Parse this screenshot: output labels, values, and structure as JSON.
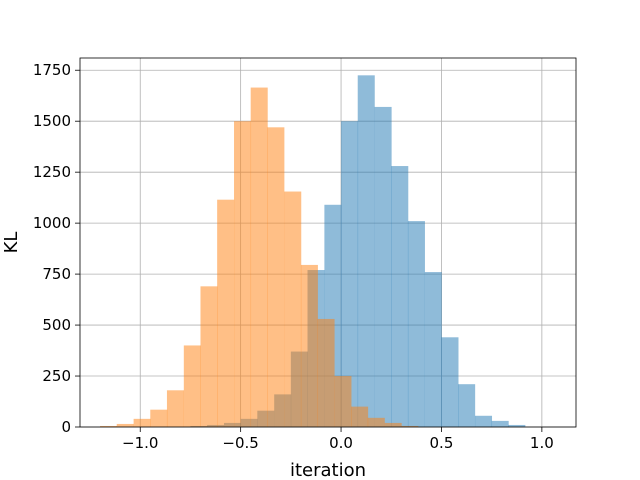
{
  "chart_data": {
    "type": "bar",
    "title": "",
    "xlabel": "iteration",
    "ylabel": "KL",
    "xlim": [
      -1.3,
      1.17
    ],
    "ylim": [
      0,
      1810
    ],
    "grid": true,
    "legend": "none",
    "xticks": [
      -1.0,
      -0.5,
      0.0,
      0.5,
      1.0
    ],
    "xtick_labels": [
      "−1.0",
      "−0.5",
      "0.0",
      "0.5",
      "1.0"
    ],
    "yticks": [
      0,
      250,
      500,
      750,
      1000,
      1250,
      1500,
      1750
    ],
    "ytick_labels": [
      "0",
      "250",
      "500",
      "750",
      "1000",
      "1250",
      "1500",
      "1750"
    ],
    "bin_width": 0.0833,
    "series": [
      {
        "color": "#1f77b4",
        "opacity": 0.5,
        "bin_starts": [
          -0.75,
          -0.667,
          -0.583,
          -0.5,
          -0.417,
          -0.333,
          -0.25,
          -0.167,
          -0.083,
          0.0,
          0.083,
          0.167,
          0.25,
          0.333,
          0.417,
          0.5,
          0.583,
          0.667,
          0.75,
          0.833
        ],
        "values": [
          5,
          10,
          20,
          40,
          80,
          160,
          370,
          770,
          1090,
          1500,
          1725,
          1570,
          1280,
          1010,
          760,
          440,
          210,
          55,
          30,
          10
        ]
      },
      {
        "color": "#ff7f0e",
        "opacity": 0.5,
        "bin_starts": [
          -1.2,
          -1.117,
          -1.033,
          -0.95,
          -0.867,
          -0.783,
          -0.7,
          -0.617,
          -0.533,
          -0.45,
          -0.367,
          -0.283,
          -0.2,
          -0.117,
          -0.033,
          0.05,
          0.133,
          0.217,
          0.3
        ],
        "values": [
          5,
          15,
          40,
          85,
          180,
          400,
          690,
          1115,
          1500,
          1665,
          1470,
          1155,
          795,
          530,
          250,
          100,
          45,
          20,
          5
        ]
      }
    ]
  }
}
